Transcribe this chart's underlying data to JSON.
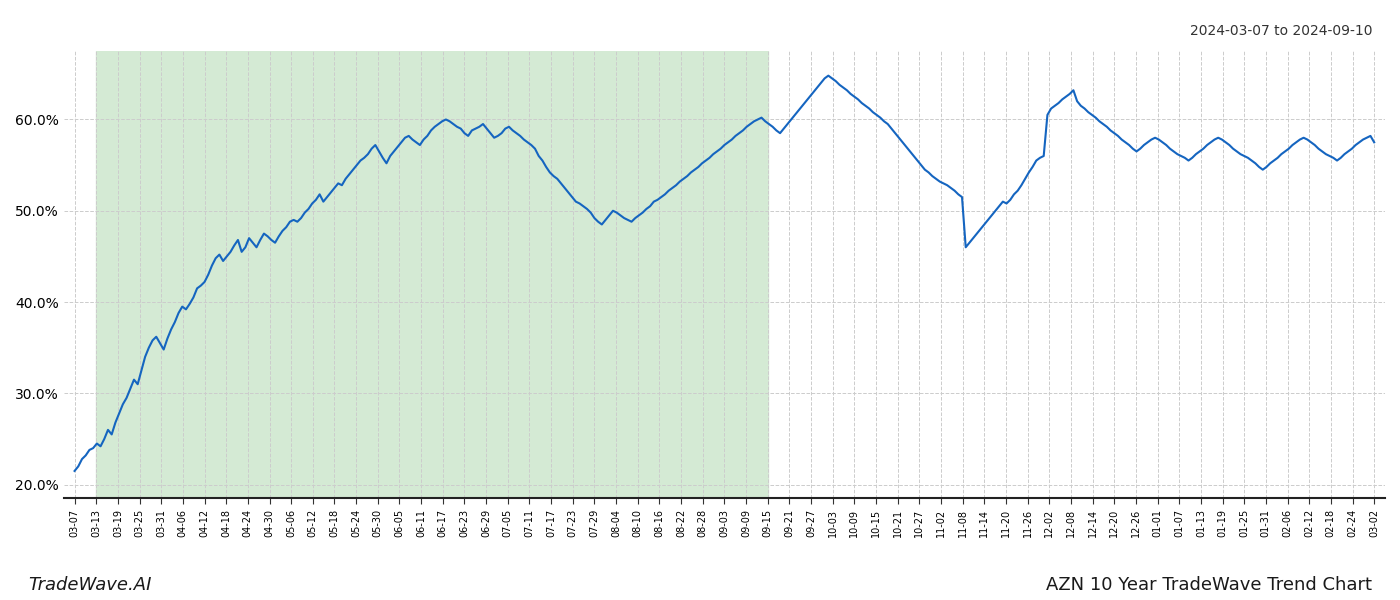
{
  "title_top_right": "2024-03-07 to 2024-09-10",
  "title_bottom_left": "TradeWave.AI",
  "title_bottom_right": "AZN 10 Year TradeWave Trend Chart",
  "ylim": [
    0.185,
    0.675
  ],
  "yticks": [
    0.2,
    0.3,
    0.4,
    0.5,
    0.6
  ],
  "ytick_labels": [
    "20.0%",
    "30.0%",
    "40.0%",
    "50.0%",
    "60.0%"
  ],
  "line_color": "#1565c0",
  "line_width": 1.5,
  "shaded_color": "#d4ead4",
  "background_color": "#ffffff",
  "grid_color": "#cccccc",
  "xtick_labels": [
    "03-07",
    "03-13",
    "03-19",
    "03-25",
    "03-31",
    "04-06",
    "04-12",
    "04-18",
    "04-24",
    "04-30",
    "05-06",
    "05-12",
    "05-18",
    "05-24",
    "05-30",
    "06-05",
    "06-11",
    "06-17",
    "06-23",
    "06-29",
    "07-05",
    "07-11",
    "07-17",
    "07-23",
    "07-29",
    "08-04",
    "08-10",
    "08-16",
    "08-22",
    "08-28",
    "09-03",
    "09-09",
    "09-15",
    "09-21",
    "09-27",
    "10-03",
    "10-09",
    "10-15",
    "10-21",
    "10-27",
    "11-02",
    "11-08",
    "11-14",
    "11-20",
    "11-26",
    "12-02",
    "12-08",
    "12-14",
    "12-20",
    "12-26",
    "01-01",
    "01-07",
    "01-13",
    "01-19",
    "01-25",
    "01-31",
    "02-06",
    "02-12",
    "02-18",
    "02-24",
    "03-02"
  ],
  "shade_start_label": "03-13",
  "shade_end_label": "09-15",
  "values": [
    0.215,
    0.22,
    0.228,
    0.232,
    0.238,
    0.24,
    0.245,
    0.242,
    0.25,
    0.26,
    0.255,
    0.268,
    0.278,
    0.288,
    0.295,
    0.305,
    0.315,
    0.31,
    0.325,
    0.34,
    0.35,
    0.358,
    0.362,
    0.355,
    0.348,
    0.36,
    0.37,
    0.378,
    0.388,
    0.395,
    0.392,
    0.398,
    0.405,
    0.415,
    0.418,
    0.422,
    0.43,
    0.44,
    0.448,
    0.452,
    0.445,
    0.45,
    0.455,
    0.462,
    0.468,
    0.455,
    0.46,
    0.47,
    0.465,
    0.46,
    0.468,
    0.475,
    0.472,
    0.468,
    0.465,
    0.472,
    0.478,
    0.482,
    0.488,
    0.49,
    0.488,
    0.492,
    0.498,
    0.502,
    0.508,
    0.512,
    0.518,
    0.51,
    0.515,
    0.52,
    0.525,
    0.53,
    0.528,
    0.535,
    0.54,
    0.545,
    0.55,
    0.555,
    0.558,
    0.562,
    0.568,
    0.572,
    0.565,
    0.558,
    0.552,
    0.56,
    0.565,
    0.57,
    0.575,
    0.58,
    0.582,
    0.578,
    0.575,
    0.572,
    0.578,
    0.582,
    0.588,
    0.592,
    0.595,
    0.598,
    0.6,
    0.598,
    0.595,
    0.592,
    0.59,
    0.585,
    0.582,
    0.588,
    0.59,
    0.592,
    0.595,
    0.59,
    0.585,
    0.58,
    0.582,
    0.585,
    0.59,
    0.592,
    0.588,
    0.585,
    0.582,
    0.578,
    0.575,
    0.572,
    0.568,
    0.56,
    0.555,
    0.548,
    0.542,
    0.538,
    0.535,
    0.53,
    0.525,
    0.52,
    0.515,
    0.51,
    0.508,
    0.505,
    0.502,
    0.498,
    0.492,
    0.488,
    0.485,
    0.49,
    0.495,
    0.5,
    0.498,
    0.495,
    0.492,
    0.49,
    0.488,
    0.492,
    0.495,
    0.498,
    0.502,
    0.505,
    0.51,
    0.512,
    0.515,
    0.518,
    0.522,
    0.525,
    0.528,
    0.532,
    0.535,
    0.538,
    0.542,
    0.545,
    0.548,
    0.552,
    0.555,
    0.558,
    0.562,
    0.565,
    0.568,
    0.572,
    0.575,
    0.578,
    0.582,
    0.585,
    0.588,
    0.592,
    0.595,
    0.598,
    0.6,
    0.602,
    0.598,
    0.595,
    0.592,
    0.588,
    0.585,
    0.59,
    0.595,
    0.6,
    0.605,
    0.61,
    0.615,
    0.62,
    0.625,
    0.63,
    0.635,
    0.64,
    0.645,
    0.648,
    0.645,
    0.642,
    0.638,
    0.635,
    0.632,
    0.628,
    0.625,
    0.622,
    0.618,
    0.615,
    0.612,
    0.608,
    0.605,
    0.602,
    0.598,
    0.595,
    0.59,
    0.585,
    0.58,
    0.575,
    0.57,
    0.565,
    0.56,
    0.555,
    0.55,
    0.545,
    0.542,
    0.538,
    0.535,
    0.532,
    0.53,
    0.528,
    0.525,
    0.522,
    0.518,
    0.515,
    0.46,
    0.465,
    0.47,
    0.475,
    0.48,
    0.485,
    0.49,
    0.495,
    0.5,
    0.505,
    0.51,
    0.508,
    0.512,
    0.518,
    0.522,
    0.528,
    0.535,
    0.542,
    0.548,
    0.555,
    0.558,
    0.56,
    0.605,
    0.612,
    0.615,
    0.618,
    0.622,
    0.625,
    0.628,
    0.632,
    0.62,
    0.615,
    0.612,
    0.608,
    0.605,
    0.602,
    0.598,
    0.595,
    0.592,
    0.588,
    0.585,
    0.582,
    0.578,
    0.575,
    0.572,
    0.568,
    0.565,
    0.568,
    0.572,
    0.575,
    0.578,
    0.58,
    0.578,
    0.575,
    0.572,
    0.568,
    0.565,
    0.562,
    0.56,
    0.558,
    0.555,
    0.558,
    0.562,
    0.565,
    0.568,
    0.572,
    0.575,
    0.578,
    0.58,
    0.578,
    0.575,
    0.572,
    0.568,
    0.565,
    0.562,
    0.56,
    0.558,
    0.555,
    0.552,
    0.548,
    0.545,
    0.548,
    0.552,
    0.555,
    0.558,
    0.562,
    0.565,
    0.568,
    0.572,
    0.575,
    0.578,
    0.58,
    0.578,
    0.575,
    0.572,
    0.568,
    0.565,
    0.562,
    0.56,
    0.558,
    0.555,
    0.558,
    0.562,
    0.565,
    0.568,
    0.572,
    0.575,
    0.578,
    0.58,
    0.582,
    0.575
  ]
}
